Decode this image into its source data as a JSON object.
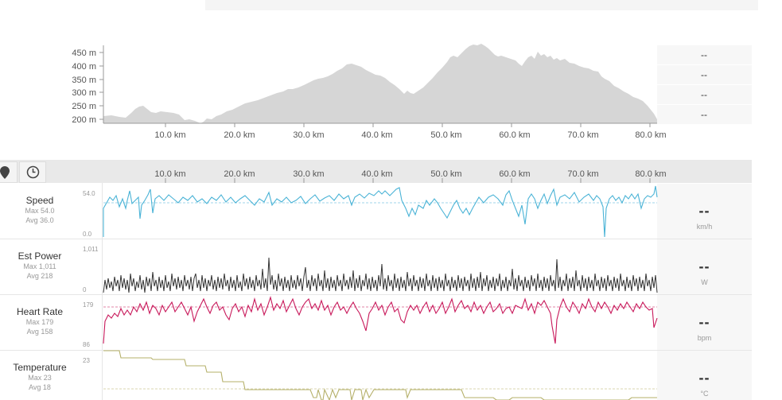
{
  "elevation": {
    "y_labels": [
      "450 m",
      "400 m",
      "350 m",
      "300 m",
      "250 m",
      "200 m"
    ],
    "x_labels": [
      "10.0 km",
      "20.0 km",
      "30.0 km",
      "40.0 km",
      "50.0 km",
      "60.0 km",
      "70.0 km",
      "80.0 km"
    ],
    "side_values": [
      "--",
      "--",
      "--",
      "--"
    ],
    "color": "#d6d6d6"
  },
  "distance_axis": {
    "labels": [
      "10.0 km",
      "20.0 km",
      "30.0 km",
      "40.0 km",
      "50.0 km",
      "60.0 km",
      "70.0 km",
      "80.0 km"
    ]
  },
  "controls": {
    "pin_icon": "map-pin-icon",
    "clock_icon": "clock-icon"
  },
  "metrics": [
    {
      "name": "Speed",
      "max": "Max 54.0",
      "avg": "Avg 36.0",
      "ymax": "54.0",
      "ymin": "0.0",
      "value": "--",
      "unit": "km/h",
      "color": "#4ab3d6"
    },
    {
      "name": "Est Power",
      "max": "Max 1,011",
      "avg": "Avg 218",
      "ymax": "1,011",
      "ymin": "0",
      "value": "--",
      "unit": "W",
      "color": "#333333"
    },
    {
      "name": "Heart Rate",
      "max": "Max 179",
      "avg": "Avg 158",
      "ymax": "179",
      "ymin": "86",
      "value": "--",
      "unit": "bpm",
      "color": "#c8185a"
    },
    {
      "name": "Temperature",
      "max": "Max 23",
      "avg": "Avg 18",
      "ymax": "23",
      "ymin": "",
      "value": "--",
      "unit": "°C",
      "color": "#b5b06a"
    }
  ]
}
